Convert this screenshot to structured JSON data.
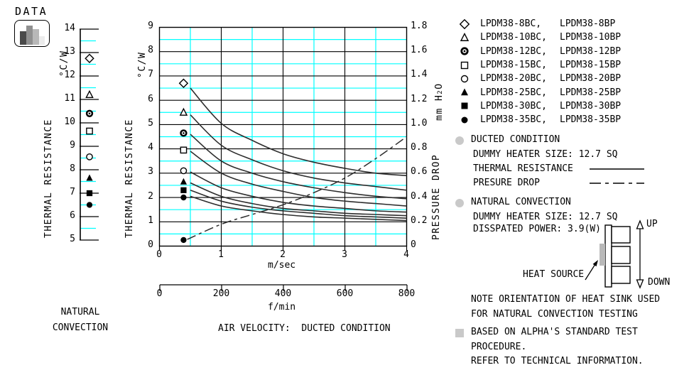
{
  "header": {
    "title": "DATA",
    "icon": "bar-chart-icon"
  },
  "colors": {
    "grid_accent": "#00ffff",
    "curve": "#2d2d2d",
    "axis": "#000000",
    "bullet_gray": "#c9c9c9",
    "heat_source_fill": "#b9b9b9"
  },
  "legend": {
    "items": [
      {
        "marker": "diamond-open",
        "bc": "LPDM38-8BC,",
        "bp": "LPDM38-8BP"
      },
      {
        "marker": "triangle-open",
        "bc": "LPDM38-10BC,",
        "bp": "LPDM38-10BP"
      },
      {
        "marker": "circle-dot",
        "bc": "LPDM38-12BC,",
        "bp": "LPDM38-12BP"
      },
      {
        "marker": "square-open",
        "bc": "LPDM38-15BC,",
        "bp": "LPDM38-15BP"
      },
      {
        "marker": "circle-open",
        "bc": "LPDM38-20BC,",
        "bp": "LPDM38-20BP"
      },
      {
        "marker": "triangle-filled",
        "bc": "LPDM38-25BC,",
        "bp": "LPDM38-25BP"
      },
      {
        "marker": "square-filled",
        "bc": "LPDM38-30BC,",
        "bp": "LPDM38-30BP"
      },
      {
        "marker": "circle-filled",
        "bc": "LPDM38-35BC,",
        "bp": "LPDM38-35BP"
      }
    ]
  },
  "chart_data": [
    {
      "id": "natural-convection",
      "type": "scatter",
      "title_lines": [
        "NATURAL",
        "CONVECTION"
      ],
      "ylabel": "THERMAL RESISTANCE",
      "yunits": "°C/W",
      "ylim": [
        5,
        14
      ],
      "ytick_step": 1,
      "grid": true,
      "points": [
        {
          "model": "LPDM38-8B",
          "marker": "diamond-open",
          "value": 12.75
        },
        {
          "model": "LPDM38-10B",
          "marker": "triangle-open",
          "value": 11.2
        },
        {
          "model": "LPDM38-12B",
          "marker": "circle-dot",
          "value": 10.4
        },
        {
          "model": "LPDM38-15B",
          "marker": "square-open",
          "value": 9.65
        },
        {
          "model": "LPDM38-20B",
          "marker": "circle-open",
          "value": 8.55
        },
        {
          "model": "LPDM38-25B",
          "marker": "triangle-filled",
          "value": 7.65
        },
        {
          "model": "LPDM38-30B",
          "marker": "square-filled",
          "value": 7.0
        },
        {
          "model": "LPDM38-35B",
          "marker": "circle-filled",
          "value": 6.5
        }
      ]
    },
    {
      "id": "ducted-condition",
      "type": "line",
      "title": "AIR VELOCITY:  DUCTED CONDITION",
      "xlabel": "m/sec",
      "xlim": [
        0,
        4
      ],
      "xtick_step": 1,
      "xlabel_secondary": "f/min",
      "xlim_secondary": [
        0,
        800
      ],
      "xtick_step_secondary": 200,
      "ylabel_left": "THERMAL RESISTANCE",
      "yunits_left": "°C/W",
      "ylim_left": [
        0,
        9
      ],
      "ytick_step_left": 1,
      "ylabel_right": "PRESSURE DROP",
      "yunits_right_parts": [
        "mm H",
        "2",
        "O"
      ],
      "ylim_right": [
        0,
        1.8
      ],
      "ytick_step_right": 0.2,
      "grid": true,
      "marker_column_x": 0.39,
      "x": [
        0.5,
        1,
        1.5,
        2,
        2.5,
        3,
        3.5,
        4
      ],
      "series": [
        {
          "model": "LPDM38-8B",
          "marker": "diamond-open",
          "marker_value": 6.7,
          "y": [
            6.5,
            5.05,
            4.35,
            3.8,
            3.45,
            3.2,
            3.0,
            2.9
          ]
        },
        {
          "model": "LPDM38-10B",
          "marker": "triangle-open",
          "marker_value": 5.5,
          "y": [
            5.4,
            4.15,
            3.55,
            3.1,
            2.8,
            2.6,
            2.45,
            2.3
          ]
        },
        {
          "model": "LPDM38-12B",
          "marker": "circle-dot",
          "marker_value": 4.65,
          "y": [
            4.6,
            3.5,
            3.0,
            2.65,
            2.4,
            2.2,
            2.05,
            1.95
          ]
        },
        {
          "model": "LPDM38-15B",
          "marker": "square-open",
          "marker_value": 3.95,
          "y": [
            3.9,
            3.0,
            2.55,
            2.25,
            2.0,
            1.85,
            1.75,
            1.65
          ]
        },
        {
          "model": "LPDM38-20B",
          "marker": "circle-open",
          "marker_value": 3.1,
          "y": [
            3.05,
            2.4,
            2.05,
            1.8,
            1.65,
            1.55,
            1.45,
            1.4
          ]
        },
        {
          "model": "LPDM38-25B",
          "marker": "triangle-filled",
          "marker_value": 2.65,
          "y": [
            2.6,
            2.05,
            1.75,
            1.55,
            1.45,
            1.35,
            1.3,
            1.25
          ]
        },
        {
          "model": "LPDM38-30B",
          "marker": "square-filled",
          "marker_value": 2.3,
          "y": [
            2.3,
            1.85,
            1.6,
            1.45,
            1.35,
            1.25,
            1.2,
            1.15
          ]
        },
        {
          "model": "LPDM38-35B",
          "marker": "circle-filled",
          "marker_value": 2.0,
          "y": [
            2.05,
            1.65,
            1.45,
            1.3,
            1.2,
            1.15,
            1.1,
            1.05
          ]
        }
      ],
      "pressure_drop": {
        "model": "PRESSURE DROP",
        "style": "dash-dot",
        "marker": "circle-filled",
        "marker_value": 0.05,
        "x": [
          0.45,
          1,
          1.5,
          2,
          2.5,
          3,
          3.5,
          4
        ],
        "y": [
          0.055,
          0.18,
          0.26,
          0.34,
          0.44,
          0.56,
          0.72,
          0.9
        ]
      }
    }
  ],
  "notes": {
    "ducted": {
      "heading": "DUCTED CONDITION",
      "dummy_heater": "DUMMY HEATER SIZE: 12.7 SQ",
      "thermal_resistance_label": "THERMAL RESISTANCE",
      "pressure_drop_label": "PRESURE DROP"
    },
    "natural": {
      "heading": "NATURAL CONVECTION",
      "dummy_heater": "DUMMY HEATER SIZE: 12.7 SQ",
      "dissipated_power": "DISSPATED POWER: 3.9(W)"
    },
    "diagram": {
      "heat_source_label": "HEAT SOURCE",
      "up_label": "UP",
      "down_label": "DOWN"
    },
    "orientation_line1": "NOTE ORIENTATION OF HEAT SINK USED",
    "orientation_line2": "FOR NATURAL CONVECTION TESTING",
    "standard_line1": "BASED ON ALPHA'S STANDARD TEST",
    "standard_line2": "PROCEDURE.",
    "standard_line3": "REFER TO TECHNICAL INFORMATION."
  }
}
